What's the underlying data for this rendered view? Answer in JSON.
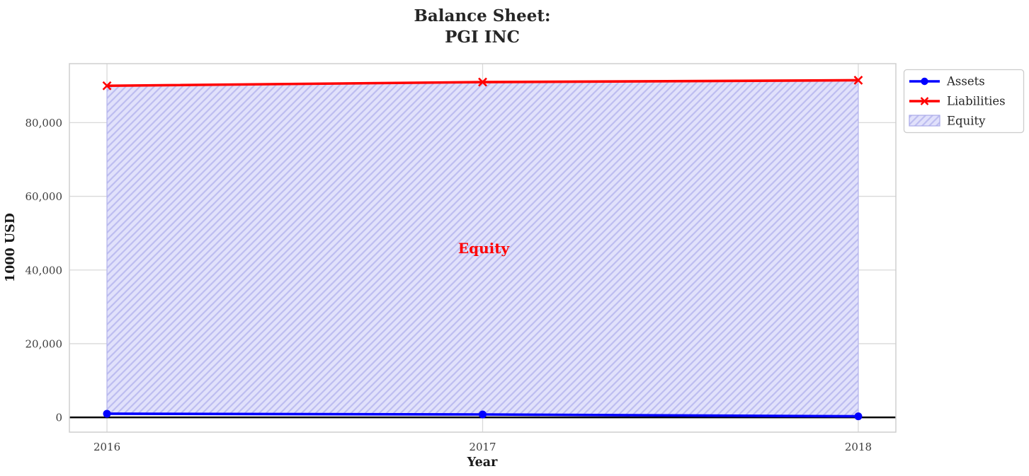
{
  "title": {
    "line1": "Balance Sheet:",
    "line2": "PGI INC"
  },
  "chart_data": {
    "type": "line",
    "title": "Balance Sheet: PGI INC",
    "xlabel": "Year",
    "ylabel": "1000 USD",
    "x": [
      2016,
      2017,
      2018
    ],
    "xtick_labels": [
      "2016",
      "2017",
      "2018"
    ],
    "yticks": [
      0,
      20000,
      40000,
      60000,
      80000
    ],
    "ytick_labels": [
      "0",
      "20,000",
      "40,000",
      "60,000",
      "80,000"
    ],
    "xlim": [
      2015.9,
      2018.1
    ],
    "ylim": [
      -4000,
      96000
    ],
    "grid": true,
    "grid_color": "#d9d9d9",
    "axes_border_color": "#cfcfcf",
    "zero_line": {
      "y": 0,
      "color": "#000000"
    },
    "series": [
      {
        "name": "Assets",
        "color": "#0000ff",
        "marker": "circle",
        "values": [
          1000,
          800,
          300
        ]
      },
      {
        "name": "Liabilities",
        "color": "#ff0000",
        "marker": "x",
        "values": [
          90000,
          91000,
          91500
        ]
      }
    ],
    "fill_between": {
      "label": "Equity",
      "between": [
        "Assets",
        "Liabilities"
      ],
      "fill_color": "#e1e1fb",
      "hatch": "//",
      "hatch_color": "#bdbdf0",
      "edge_color": "#b4b4ee"
    },
    "annotation": {
      "text": "Equity",
      "x": 2017,
      "y": 45000,
      "color": "#ff0000"
    },
    "legend": {
      "position": "outside-top-right",
      "entries": [
        "Assets",
        "Liabilities",
        "Equity"
      ]
    }
  }
}
